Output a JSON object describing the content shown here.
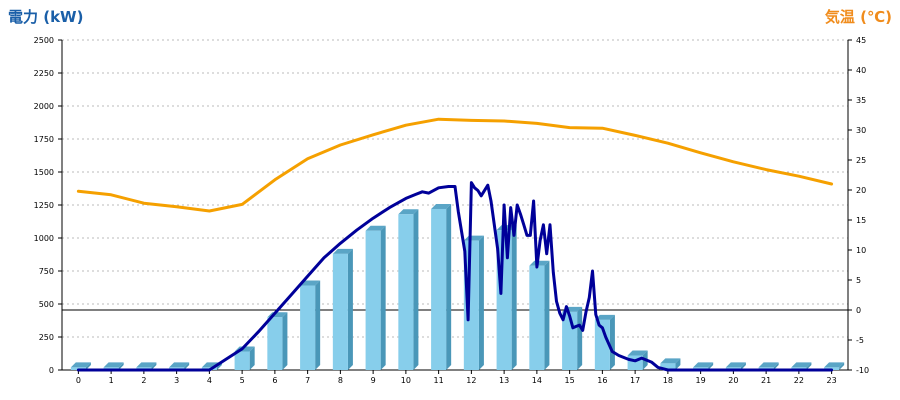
{
  "chart_data": {
    "type": "bar+line",
    "title": "",
    "left_axis": {
      "label": "電力 (kW)",
      "ylim": [
        0,
        2500
      ],
      "ticks": [
        0,
        250,
        500,
        750,
        1000,
        1250,
        1500,
        1750,
        2000,
        2250,
        2500
      ]
    },
    "right_axis": {
      "label": "気温 (℃)",
      "ylim": [
        -10,
        45
      ],
      "ticks": [
        -10,
        -5,
        0,
        5,
        10,
        15,
        20,
        25,
        30,
        35,
        40,
        45
      ]
    },
    "x_axis": {
      "label": "",
      "ticks": [
        "0",
        "1",
        "2",
        "3",
        "4",
        "5",
        "6",
        "7",
        "8",
        "9",
        "10",
        "11",
        "12",
        "13",
        "14",
        "15",
        "16",
        "17",
        "18",
        "19",
        "20",
        "21",
        "22",
        "23"
      ]
    },
    "grid": true,
    "series": [
      {
        "kind": "bar",
        "axis": "left",
        "color": "#87ceeb",
        "x": [
          0,
          1,
          2,
          3,
          4,
          5,
          6,
          7,
          8,
          9,
          10,
          11,
          12,
          13,
          14,
          15,
          16,
          17,
          18,
          19,
          20,
          21,
          22,
          23
        ],
        "values": [
          20,
          20,
          20,
          20,
          20,
          140,
          400,
          640,
          880,
          1055,
          1180,
          1220,
          980,
          1060,
          790,
          440,
          380,
          110,
          50,
          20,
          20,
          20,
          20,
          20
        ]
      },
      {
        "kind": "line",
        "axis": "left",
        "color": "#000099",
        "x": [
          0,
          1,
          2,
          3,
          4,
          4.5,
          5,
          5.5,
          6,
          6.5,
          7,
          7.5,
          8,
          8.5,
          9,
          9.5,
          10,
          10.3,
          10.5,
          10.7,
          11,
          11.3,
          11.5,
          11.6,
          11.8,
          11.9,
          12,
          12.1,
          12.2,
          12.3,
          12.5,
          12.6,
          12.8,
          12.9,
          13,
          13.1,
          13.2,
          13.3,
          13.4,
          13.5,
          13.6,
          13.7,
          13.8,
          13.9,
          14,
          14.1,
          14.2,
          14.3,
          14.4,
          14.5,
          14.6,
          14.7,
          14.8,
          14.9,
          15,
          15.1,
          15.2,
          15.3,
          15.4,
          15.5,
          15.6,
          15.7,
          15.8,
          15.9,
          16,
          16.1,
          16.3,
          16.5,
          16.8,
          17,
          17.2,
          17.5,
          17.7,
          18,
          19,
          20,
          21,
          22,
          23
        ],
        "values": [
          0,
          0,
          0,
          0,
          0,
          80,
          160,
          290,
          430,
          570,
          710,
          850,
          960,
          1060,
          1150,
          1230,
          1300,
          1330,
          1350,
          1340,
          1380,
          1390,
          1390,
          1200,
          900,
          380,
          1420,
          1380,
          1360,
          1320,
          1400,
          1280,
          920,
          580,
          1250,
          850,
          1230,
          1020,
          1250,
          1180,
          1100,
          1020,
          1020,
          1280,
          780,
          980,
          1100,
          880,
          1100,
          740,
          520,
          430,
          380,
          480,
          410,
          320,
          330,
          340,
          300,
          440,
          550,
          750,
          420,
          340,
          320,
          250,
          140,
          110,
          80,
          70,
          90,
          60,
          20,
          0,
          0,
          0,
          0,
          0,
          0
        ]
      },
      {
        "kind": "line",
        "axis": "right",
        "color": "#f5a000",
        "x": [
          0,
          1,
          2,
          3,
          4,
          5,
          6,
          7,
          8,
          9,
          10,
          11,
          12,
          13,
          14,
          15,
          16,
          17,
          18,
          19,
          20,
          21,
          22,
          23
        ],
        "values": [
          19.8,
          19.2,
          17.8,
          17.2,
          16.5,
          17.6,
          21.7,
          25.2,
          27.5,
          29.2,
          30.8,
          31.8,
          31.6,
          31.5,
          31.1,
          30.4,
          30.3,
          29.1,
          27.8,
          26.2,
          24.7,
          23.4,
          22.3,
          21
        ]
      }
    ],
    "reference_line": {
      "axis": "right",
      "value": 0,
      "color": "#000000"
    }
  }
}
